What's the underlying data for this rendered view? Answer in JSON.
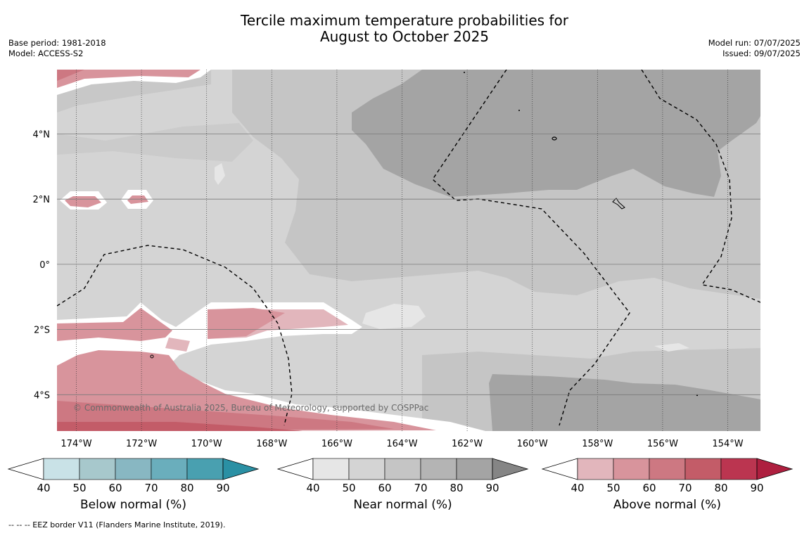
{
  "title_line1": "Tercile maximum temperature probabilities for",
  "title_line2": "August to October 2025",
  "meta_left": {
    "base_period": "Base period: 1981-2018",
    "model": "Model: ACCESS-S2"
  },
  "meta_right": {
    "model_run": "Model run: 07/07/2025",
    "issued": "Issued: 09/07/2025"
  },
  "map": {
    "lon_labels": [
      "174°W",
      "172°W",
      "170°W",
      "168°W",
      "166°W",
      "164°W",
      "162°W",
      "160°W",
      "158°W",
      "156°W",
      "154°W"
    ],
    "lat_labels": [
      "4°N",
      "2°N",
      "0°",
      "2°S",
      "4°S"
    ],
    "credit": "© Commonwealth of Australia 2025, Bureau of Meteorology, supported by COSPPac"
  },
  "colorbars": [
    {
      "label": "Below normal (%)",
      "ticks": [
        "40",
        "50",
        "60",
        "70",
        "80",
        "90"
      ],
      "colors": [
        "#c9e2e7",
        "#a7c8cc",
        "#88b7c2",
        "#6aaebc",
        "#49a0b0"
      ],
      "arrow_color": "#2a90a4"
    },
    {
      "label": "Near normal (%)",
      "ticks": [
        "40",
        "50",
        "60",
        "70",
        "80",
        "90"
      ],
      "colors": [
        "#e6e6e6",
        "#d4d4d4",
        "#c5c5c5",
        "#b4b4b4",
        "#a4a4a4"
      ],
      "arrow_color": "#858585"
    },
    {
      "label": "Above normal (%)",
      "ticks": [
        "40",
        "50",
        "60",
        "70",
        "80",
        "90"
      ],
      "colors": [
        "#e2b6bc",
        "#d8949c",
        "#cd7882",
        "#c35c68",
        "#bb3550"
      ],
      "arrow_color": "#ae1f3f"
    }
  ],
  "footnote": "--  --  -- EEZ border V11 (Flanders Marine Institute, 2019)."
}
